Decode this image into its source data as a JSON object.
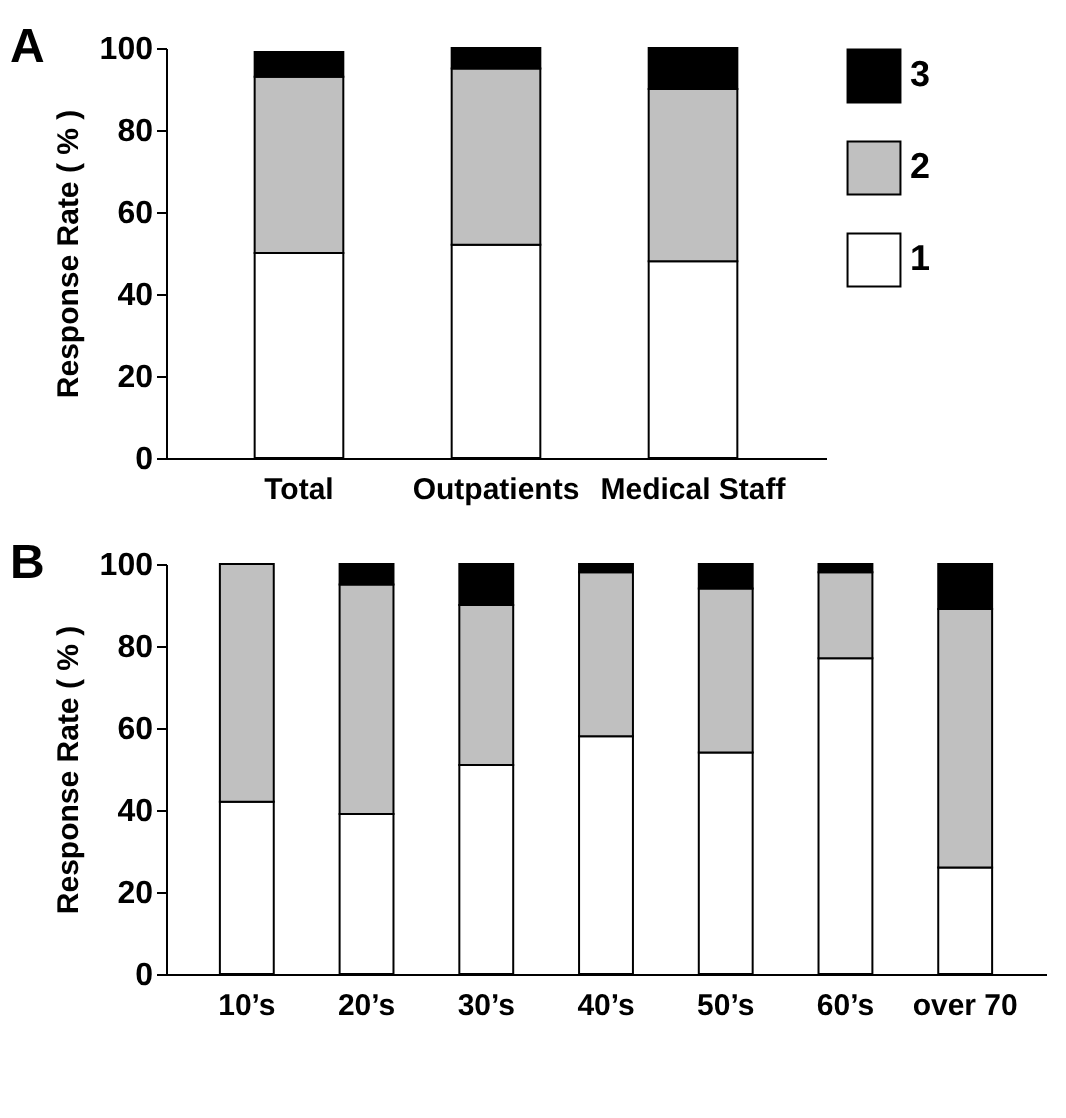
{
  "chart_data": [
    {
      "type": "bar",
      "stacked": true,
      "ylabel": "Response Rate ( % )",
      "annotations": [
        "A"
      ],
      "legend": "top right",
      "grid": false,
      "categories": [
        "Total",
        "Outpatients",
        "Medical Staff"
      ],
      "ylim": [
        0,
        100
      ],
      "yticks": [
        0,
        20,
        40,
        60,
        80,
        100
      ],
      "series": [
        {
          "name": "1",
          "color": "#ffffff",
          "values": [
            50,
            52,
            48
          ]
        },
        {
          "name": "2",
          "color": "#c0c0c0",
          "values": [
            43,
            43,
            42
          ]
        },
        {
          "name": "3",
          "color": "#000000",
          "values": [
            6,
            5,
            10
          ]
        }
      ]
    },
    {
      "type": "bar",
      "stacked": true,
      "ylabel": "Response Rate ( % )",
      "annotations": [
        "B"
      ],
      "legend": false,
      "grid": false,
      "categories": [
        "10’s",
        "20’s",
        "30’s",
        "40’s",
        "50’s",
        "60’s",
        "over 70"
      ],
      "ylim": [
        0,
        100
      ],
      "yticks": [
        0,
        20,
        40,
        60,
        80,
        100
      ],
      "series": [
        {
          "name": "1",
          "color": "#ffffff",
          "values": [
            42,
            39,
            51,
            58,
            54,
            77,
            26
          ]
        },
        {
          "name": "2",
          "color": "#c0c0c0",
          "values": [
            58,
            56,
            39,
            40,
            40,
            21,
            63
          ]
        },
        {
          "name": "3",
          "color": "#000000",
          "values": [
            0,
            5,
            10,
            2,
            6,
            2,
            11
          ]
        }
      ]
    }
  ]
}
